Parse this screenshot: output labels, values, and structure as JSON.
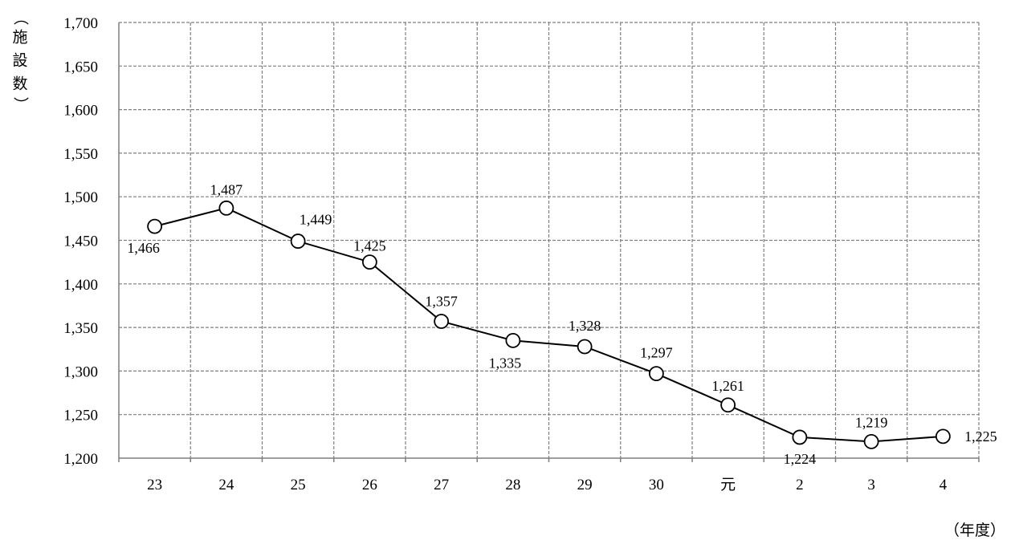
{
  "chart_data": {
    "type": "line",
    "title": "",
    "ylabel": "（施設数）",
    "xlabel": "（年度）",
    "categories": [
      "23",
      "24",
      "25",
      "26",
      "27",
      "28",
      "29",
      "30",
      "元",
      "2",
      "3",
      "4"
    ],
    "values": [
      1466,
      1487,
      1449,
      1425,
      1357,
      1335,
      1328,
      1297,
      1261,
      1224,
      1219,
      1225
    ],
    "data_labels": [
      "1,466",
      "1,487",
      "1,449",
      "1,425",
      "1,357",
      "1,335",
      "1,328",
      "1,297",
      "1,261",
      "1,224",
      "1,219",
      "1,225"
    ],
    "ylim": [
      1200,
      1700
    ],
    "y_ticks": [
      1200,
      1250,
      1300,
      1350,
      1400,
      1450,
      1500,
      1550,
      1600,
      1650,
      1700
    ],
    "y_tick_labels": [
      "1,200",
      "1,250",
      "1,300",
      "1,350",
      "1,400",
      "1,450",
      "1,500",
      "1,550",
      "1,600",
      "1,650",
      "1,700"
    ],
    "grid": true,
    "legend": "none",
    "line_color": "#000000",
    "marker": "open-circle"
  }
}
